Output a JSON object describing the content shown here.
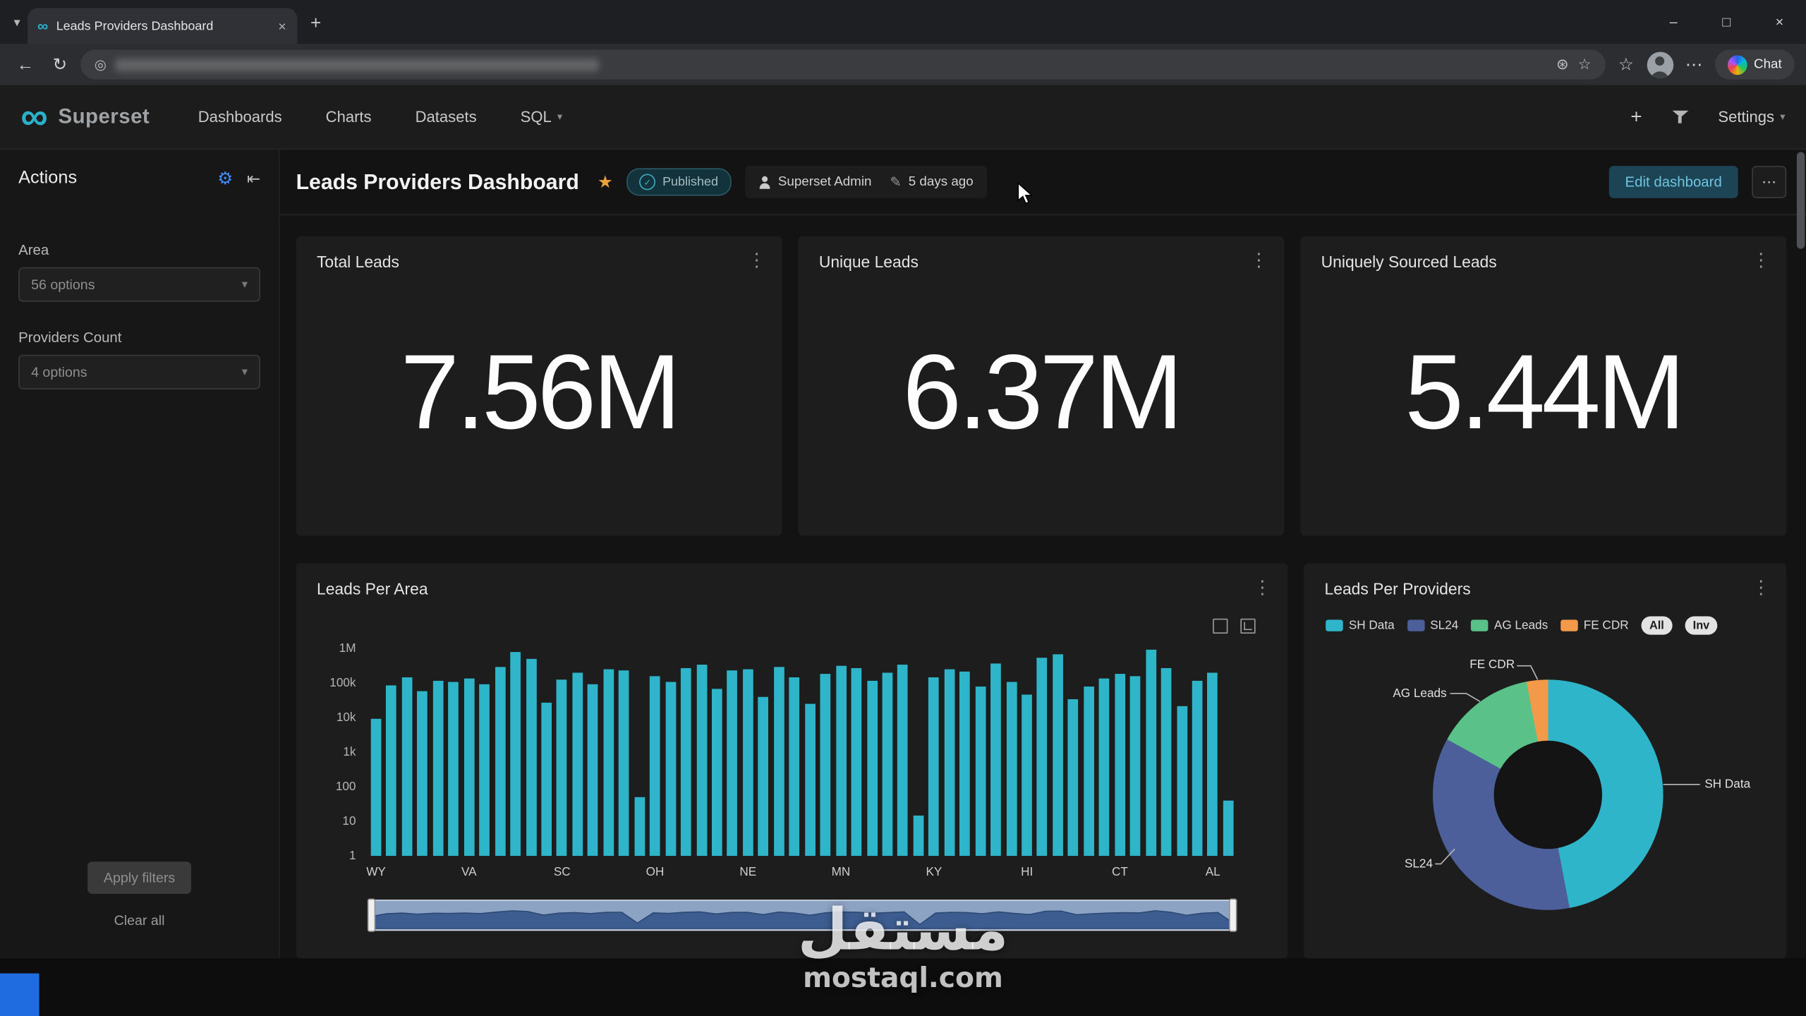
{
  "browser": {
    "tab_title": "Leads Providers Dashboard",
    "chat_label": "Chat"
  },
  "icons": {
    "tab_search": "▾",
    "close": "×",
    "plus": "+",
    "minimize": "–",
    "maximize": "□",
    "back": "←",
    "refresh": "↻",
    "site_info": "◎",
    "omnibox_action": "⊛",
    "bookmark_star": "☆",
    "favorites_star": "☆",
    "browser_menu": "⋯",
    "kebab": "⋮",
    "ellipsis": "⋯",
    "caret_down": "▾",
    "favorite_star": "★",
    "check": "✓",
    "pencil": "✎",
    "gear": "⚙",
    "collapse": "⇤",
    "infinity": "∞"
  },
  "app_header": {
    "brand": "Superset",
    "nav": [
      {
        "label": "Dashboards"
      },
      {
        "label": "Charts"
      },
      {
        "label": "Datasets"
      },
      {
        "label": "SQL"
      }
    ],
    "settings_label": "Settings"
  },
  "sidebar": {
    "title": "Actions",
    "filters": [
      {
        "label": "Area",
        "value": "56 options"
      },
      {
        "label": "Providers Count",
        "value": "4 options"
      }
    ],
    "apply_label": "Apply filters",
    "clear_label": "Clear all"
  },
  "dashboard": {
    "title": "Leads Providers Dashboard",
    "published_label": "Published",
    "owner": "Superset Admin",
    "last_modified": "5 days ago",
    "edit_button_label": "Edit dashboard"
  },
  "kpis": [
    {
      "title": "Total Leads",
      "value": "7.56M"
    },
    {
      "title": "Unique Leads",
      "value": "6.37M"
    },
    {
      "title": "Uniquely Sourced Leads",
      "value": "5.44M"
    }
  ],
  "chart_data": [
    {
      "type": "bar",
      "title": "Leads Per Area",
      "y_scale": "log",
      "y_ticks": [
        "1M",
        "100k",
        "10k",
        "1k",
        "100",
        "10",
        "1"
      ],
      "y_range": [
        1,
        1000000
      ],
      "x_tick_labels": [
        "WY",
        "VA",
        "SC",
        "OH",
        "NE",
        "MN",
        "KY",
        "HI",
        "CT",
        "AL"
      ],
      "x_tick_indices": [
        0,
        6,
        12,
        18,
        24,
        30,
        36,
        42,
        48,
        54
      ],
      "bar_color": "#2EB5C9",
      "values": [
        9000,
        85000,
        150000,
        60000,
        120000,
        110000,
        140000,
        90000,
        300000,
        800000,
        500000,
        28000,
        130000,
        200000,
        90000,
        260000,
        240000,
        50,
        160000,
        110000,
        280000,
        350000,
        70000,
        230000,
        260000,
        40000,
        300000,
        150000,
        26000,
        180000,
        320000,
        280000,
        120000,
        200000,
        350000,
        15,
        150000,
        260000,
        210000,
        80000,
        380000,
        110000,
        45000,
        550000,
        700000,
        35000,
        80000,
        140000,
        190000,
        160000,
        900000,
        280000,
        22000,
        120000,
        200000,
        40
      ]
    },
    {
      "type": "donut",
      "title": "Leads Per Providers",
      "legend_position": "top",
      "segments": [
        {
          "name": "SH Data",
          "pct": 47,
          "color": "#2EB5C9"
        },
        {
          "name": "SL24",
          "pct": 36,
          "color": "#4C5F9B"
        },
        {
          "name": "AG Leads",
          "pct": 14,
          "color": "#5AC189"
        },
        {
          "name": "FE CDR",
          "pct": 3,
          "color": "#F2994A"
        }
      ],
      "legend_buttons": [
        "All",
        "Inv"
      ]
    }
  ],
  "watermark": {
    "arabic": "مستقل",
    "domain": "mostaql.com"
  }
}
